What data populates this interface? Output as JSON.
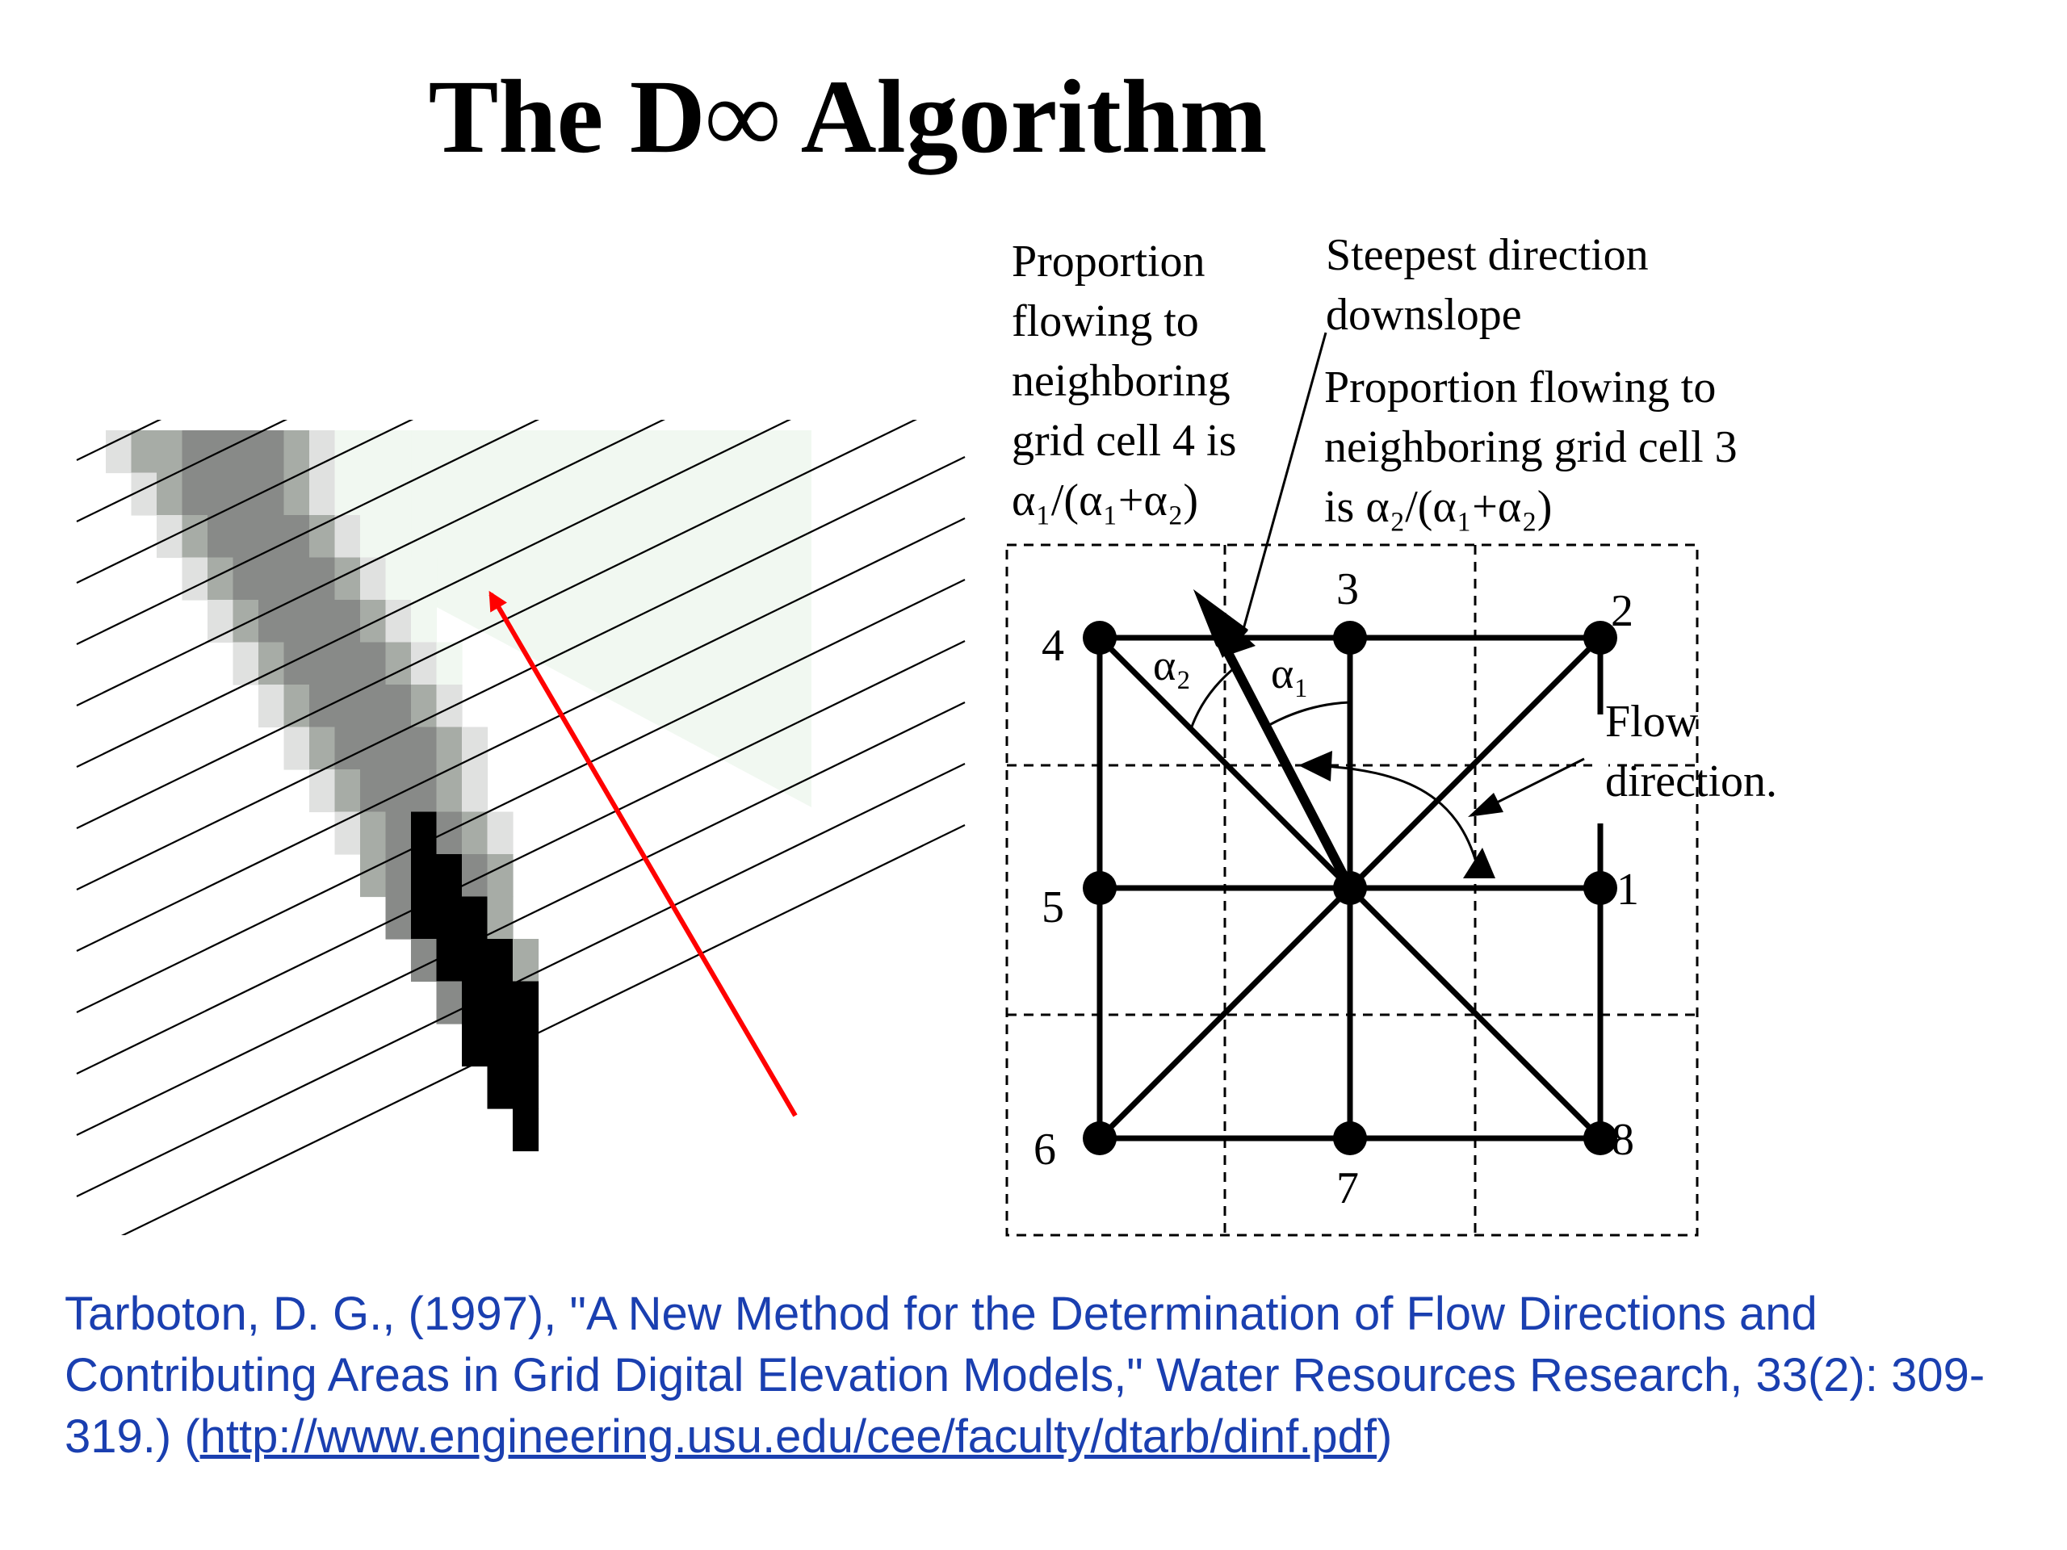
{
  "title": "The D∞ Algorithm",
  "diagram": {
    "label_left": [
      "Proportion",
      "flowing to",
      "neighboring",
      "grid cell 4 is",
      "α₁/(α₁+α₂)"
    ],
    "label_steepest": [
      "Steepest direction",
      "downslope"
    ],
    "label_right": [
      "Proportion flowing to",
      "neighboring grid cell 3",
      "is α₂/(α₁+α₂)"
    ],
    "label_flow": [
      "Flow",
      "direction."
    ],
    "alpha1": "α₁",
    "alpha2": "α₂",
    "cell_numbers": {
      "n1": "1",
      "n2": "2",
      "n3": "3",
      "n4": "4",
      "n5": "5",
      "n6": "6",
      "n7": "7",
      "n8": "8"
    }
  },
  "citation": {
    "text": "Tarboton, D. G., (1997), \"A New Method for the Determination of Flow Directions and Contributing Areas in Grid Digital Elevation Models,\" Water Resources Research, 33(2): 309-319.) (",
    "link": "http://www.engineering.usu.edu/cee/faculty/dtarb/dinf.pdf",
    "tail": ")"
  },
  "colors": {
    "citation": "#1a3fb0",
    "flow_arrow": "#ff0000",
    "cell_black": "#000000",
    "cell_dark": "#888a88",
    "cell_mid": "#a7aca6",
    "cell_light": "#e0e1e0",
    "cell_pale": "#f1f8f1"
  }
}
